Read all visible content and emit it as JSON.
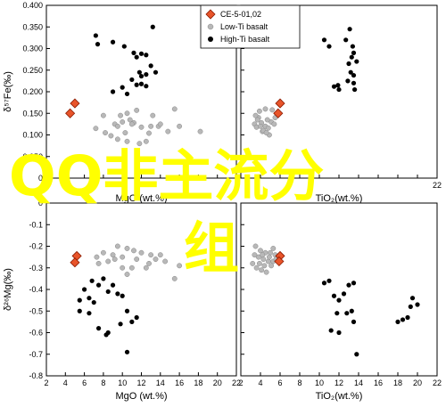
{
  "watermark": {
    "line1": "QQ非主流分",
    "line2": "组"
  },
  "colors": {
    "ce": "#e8542a",
    "low_ti": "#b8b8b8",
    "high_ti": "#000000",
    "overlay": "#ffff00"
  },
  "legend": [
    {
      "key": "ce",
      "label": "CE-5-01,02",
      "marker": "diamond"
    },
    {
      "key": "low_ti",
      "label": "Low-Ti basalt",
      "marker": "circle"
    },
    {
      "key": "high_ti",
      "label": "High-Ti basalt",
      "marker": "circle"
    }
  ],
  "chart_data": [
    {
      "id": "fe-mgo",
      "type": "scatter",
      "xlabel": "MgO (wt.%)",
      "ylabel": "δ⁵⁷Fe(‰)",
      "xlim": [
        2,
        22
      ],
      "ylim": [
        0,
        0.4
      ],
      "xticks": [
        "",
        "",
        "",
        "",
        "",
        "",
        "",
        "",
        "",
        "",
        ""
      ],
      "yticks": [
        "0",
        "0.050",
        "0.100",
        "0.150",
        "0.200",
        "0.250",
        "0.300",
        "0.350",
        "0.400"
      ],
      "series": [
        {
          "key": "ce",
          "points": [
            [
              4.5,
              0.15
            ],
            [
              5.0,
              0.173
            ]
          ]
        },
        {
          "key": "low_ti",
          "points": [
            [
              9.2,
              0.125
            ],
            [
              10,
              0.13
            ],
            [
              10.8,
              0.135
            ],
            [
              11.2,
              0.128
            ],
            [
              12,
              0.118
            ],
            [
              13,
              0.12
            ],
            [
              13.8,
              0.12
            ],
            [
              11,
              0.125
            ],
            [
              14,
              0.125
            ],
            [
              9.5,
              0.12
            ],
            [
              10.3,
              0.105
            ],
            [
              8.2,
              0.105
            ],
            [
              8.8,
              0.098
            ],
            [
              9.5,
              0.09
            ],
            [
              10.5,
              0.085
            ],
            [
              12.5,
              0.085
            ],
            [
              14.8,
              0.108
            ],
            [
              16,
              0.12
            ],
            [
              15.5,
              0.16
            ],
            [
              11.5,
              0.157
            ],
            [
              10.5,
              0.15
            ],
            [
              9.8,
              0.145
            ],
            [
              8,
              0.145
            ],
            [
              7.2,
              0.115
            ],
            [
              11.8,
              0.08
            ],
            [
              13.2,
              0.145
            ],
            [
              12.8,
              0.104
            ],
            [
              18.2,
              0.108
            ]
          ]
        },
        {
          "key": "high_ti",
          "points": [
            [
              7.2,
              0.33
            ],
            [
              7.4,
              0.31
            ],
            [
              9,
              0.315
            ],
            [
              10.2,
              0.305
            ],
            [
              11.2,
              0.29
            ],
            [
              11.5,
              0.28
            ],
            [
              12,
              0.288
            ],
            [
              12.5,
              0.285
            ],
            [
              13,
              0.26
            ],
            [
              13.5,
              0.245
            ],
            [
              12.5,
              0.24
            ],
            [
              12,
              0.236
            ],
            [
              11.8,
              0.245
            ],
            [
              11,
              0.228
            ],
            [
              11.5,
              0.216
            ],
            [
              12,
              0.218
            ],
            [
              12.5,
              0.213
            ],
            [
              10,
              0.21
            ],
            [
              9,
              0.2
            ],
            [
              10.5,
              0.195
            ],
            [
              13.2,
              0.35
            ]
          ]
        }
      ]
    },
    {
      "id": "fe-tio2",
      "type": "scatter",
      "xlabel": "TiO₂(wt.%)",
      "ylabel": "",
      "xlim": [
        2,
        22
      ],
      "ylim": [
        0,
        0.4
      ],
      "xticks": [
        "",
        "",
        "",
        "",
        "",
        "",
        "",
        "",
        "",
        "",
        "22"
      ],
      "yticks": [
        "",
        "",
        "",
        "",
        "",
        "",
        "",
        "",
        ""
      ],
      "series": [
        {
          "key": "ce",
          "points": [
            [
              5.8,
              0.15
            ],
            [
              6,
              0.173
            ]
          ]
        },
        {
          "key": "low_ti",
          "points": [
            [
              3.4,
              0.125
            ],
            [
              3.8,
              0.14
            ],
            [
              4.1,
              0.128
            ],
            [
              4.5,
              0.12
            ],
            [
              4.8,
              0.116
            ],
            [
              5.1,
              0.13
            ],
            [
              4.2,
              0.108
            ],
            [
              3.6,
              0.118
            ],
            [
              3.9,
              0.155
            ],
            [
              4.5,
              0.16
            ],
            [
              5.2,
              0.158
            ],
            [
              3.5,
              0.145
            ],
            [
              4.9,
              0.1
            ],
            [
              4.3,
              0.11
            ],
            [
              3.7,
              0.135
            ],
            [
              4.7,
              0.135
            ],
            [
              5.4,
              0.125
            ],
            [
              4,
              0.12
            ],
            [
              4.6,
              0.105
            ],
            [
              5.5,
              0.14
            ]
          ]
        },
        {
          "key": "high_ti",
          "points": [
            [
              10.5,
              0.32
            ],
            [
              11,
              0.305
            ],
            [
              12.7,
              0.32
            ],
            [
              13,
              0.265
            ],
            [
              13.4,
              0.305
            ],
            [
              13.5,
              0.29
            ],
            [
              13.3,
              0.28
            ],
            [
              13.8,
              0.27
            ],
            [
              13.2,
              0.245
            ],
            [
              13.5,
              0.238
            ],
            [
              12.9,
              0.225
            ],
            [
              11.9,
              0.215
            ],
            [
              11.5,
              0.212
            ],
            [
              12,
              0.205
            ],
            [
              13.1,
              0.345
            ],
            [
              13.5,
              0.22
            ],
            [
              13.6,
              0.205
            ]
          ]
        }
      ]
    },
    {
      "id": "mg-mgo",
      "type": "scatter",
      "xlabel": "MgO (wt.%)",
      "ylabel": "δ²⁶Mg(‰)",
      "xlim": [
        2,
        22
      ],
      "ylim": [
        -0.8,
        0
      ],
      "xticks": [
        "2",
        "4",
        "6",
        "8",
        "10",
        "12",
        "14",
        "16",
        "18",
        "20",
        "22"
      ],
      "yticks": [
        "-0.8",
        "-0.7",
        "-0.6",
        "-0.5",
        "-0.4",
        "-0.3",
        "-0.2",
        "-0.1",
        "0"
      ],
      "series": [
        {
          "key": "ce",
          "points": [
            [
              5.2,
              -0.245
            ],
            [
              5,
              -0.275
            ]
          ]
        },
        {
          "key": "low_ti",
          "points": [
            [
              9.5,
              -0.2
            ],
            [
              10.5,
              -0.21
            ],
            [
              11.2,
              -0.22
            ],
            [
              12,
              -0.23
            ],
            [
              13,
              -0.24
            ],
            [
              14,
              -0.24
            ],
            [
              9,
              -0.24
            ],
            [
              10,
              -0.25
            ],
            [
              11.5,
              -0.26
            ],
            [
              8.5,
              -0.27
            ],
            [
              7.5,
              -0.28
            ],
            [
              10,
              -0.3
            ],
            [
              11,
              -0.3
            ],
            [
              12.5,
              -0.3
            ],
            [
              16,
              -0.29
            ],
            [
              15.5,
              -0.35
            ],
            [
              12.8,
              -0.28
            ],
            [
              9.2,
              -0.26
            ],
            [
              8,
              -0.23
            ],
            [
              13.5,
              -0.26
            ],
            [
              10.5,
              -0.33
            ],
            [
              14.5,
              -0.27
            ],
            [
              7.3,
              -0.25
            ]
          ]
        },
        {
          "key": "high_ti",
          "points": [
            [
              5.5,
              -0.45
            ],
            [
              6,
              -0.4
            ],
            [
              6.5,
              -0.44
            ],
            [
              7,
              -0.46
            ],
            [
              7.5,
              -0.38
            ],
            [
              8,
              -0.35
            ],
            [
              8.5,
              -0.41
            ],
            [
              9.5,
              -0.42
            ],
            [
              10,
              -0.43
            ],
            [
              10.5,
              -0.5
            ],
            [
              11,
              -0.55
            ],
            [
              11.5,
              -0.53
            ],
            [
              9.8,
              -0.56
            ],
            [
              8.5,
              -0.6
            ],
            [
              7.5,
              -0.58
            ],
            [
              10.5,
              -0.69
            ],
            [
              8.3,
              -0.61
            ],
            [
              6.5,
              -0.51
            ],
            [
              9,
              -0.38
            ],
            [
              5.5,
              -0.5
            ],
            [
              6.8,
              -0.36
            ]
          ]
        }
      ]
    },
    {
      "id": "mg-tio2",
      "type": "scatter",
      "xlabel": "TiO₂(wt.%)",
      "ylabel": "",
      "xlim": [
        2,
        22
      ],
      "ylim": [
        -0.8,
        0
      ],
      "xticks": [
        "2",
        "4",
        "6",
        "8",
        "10",
        "12",
        "14",
        "16",
        "18",
        "20",
        "22"
      ],
      "yticks": [
        "",
        "",
        "",
        "",
        "",
        "",
        "",
        "",
        ""
      ],
      "series": [
        {
          "key": "ce",
          "points": [
            [
              6,
              -0.245
            ],
            [
              5.9,
              -0.27
            ]
          ]
        },
        {
          "key": "low_ti",
          "points": [
            [
              3.5,
              -0.2
            ],
            [
              4,
              -0.22
            ],
            [
              4.5,
              -0.23
            ],
            [
              5,
              -0.23
            ],
            [
              5.5,
              -0.24
            ],
            [
              3.8,
              -0.25
            ],
            [
              4.3,
              -0.26
            ],
            [
              4.8,
              -0.27
            ],
            [
              5.3,
              -0.27
            ],
            [
              3.2,
              -0.28
            ],
            [
              3.6,
              -0.3
            ],
            [
              4.1,
              -0.31
            ],
            [
              4.6,
              -0.32
            ],
            [
              5.1,
              -0.29
            ],
            [
              4.2,
              -0.24
            ],
            [
              4.9,
              -0.25
            ],
            [
              3.9,
              -0.28
            ],
            [
              5.6,
              -0.26
            ],
            [
              4.4,
              -0.29
            ],
            [
              3.4,
              -0.24
            ],
            [
              5.3,
              -0.21
            ]
          ]
        },
        {
          "key": "high_ti",
          "points": [
            [
              10.5,
              -0.37
            ],
            [
              11,
              -0.36
            ],
            [
              11.5,
              -0.43
            ],
            [
              12,
              -0.45
            ],
            [
              12.5,
              -0.42
            ],
            [
              13,
              -0.38
            ],
            [
              13.5,
              -0.37
            ],
            [
              12.8,
              -0.51
            ],
            [
              13.3,
              -0.5
            ],
            [
              13.5,
              -0.55
            ],
            [
              11.8,
              -0.51
            ],
            [
              11.2,
              -0.59
            ],
            [
              12,
              -0.6
            ],
            [
              13.8,
              -0.7
            ],
            [
              18,
              -0.55
            ],
            [
              18.5,
              -0.54
            ],
            [
              19,
              -0.53
            ],
            [
              19.5,
              -0.44
            ],
            [
              20,
              -0.47
            ],
            [
              19.3,
              -0.48
            ]
          ]
        }
      ]
    }
  ]
}
